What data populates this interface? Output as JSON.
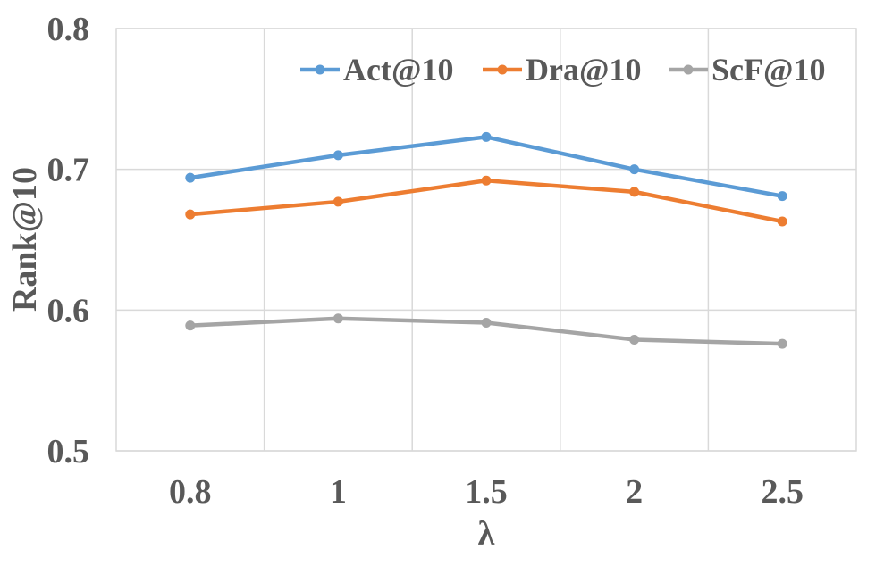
{
  "chart_data": {
    "type": "line",
    "title": "",
    "xlabel": "λ",
    "ylabel": "Rank@10",
    "categories": [
      "0.8",
      "1",
      "1.5",
      "2",
      "2.5"
    ],
    "ylim": [
      0.5,
      0.8
    ],
    "yticks": [
      "0.5",
      "0.6",
      "0.7",
      "0.8"
    ],
    "grid": true,
    "legend_position": "top-right",
    "series": [
      {
        "name": "Act@10",
        "color": "#5B9BD5",
        "values": [
          0.694,
          0.71,
          0.723,
          0.7,
          0.681
        ]
      },
      {
        "name": "Dra@10",
        "color": "#ED7D31",
        "values": [
          0.668,
          0.677,
          0.692,
          0.684,
          0.663
        ]
      },
      {
        "name": "ScF@10",
        "color": "#A5A5A5",
        "values": [
          0.589,
          0.594,
          0.591,
          0.579,
          0.576
        ]
      }
    ]
  }
}
